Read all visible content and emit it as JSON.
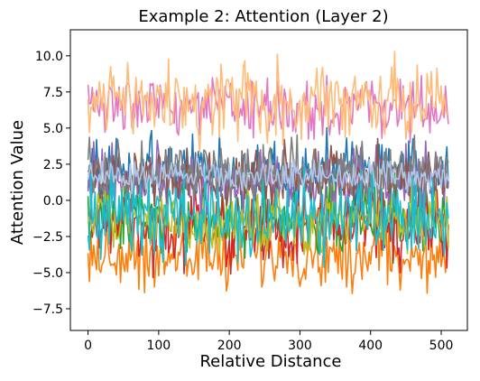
{
  "chart_data": {
    "type": "line",
    "title": "Example 2: Attention (Layer 2)",
    "xlabel": "Relative Distance",
    "ylabel": "Attention Value",
    "xlim": [
      -25,
      537
    ],
    "ylim": [
      -9.0,
      11.8
    ],
    "x_ticks": [
      0,
      100,
      200,
      300,
      400,
      500
    ],
    "x_tick_labels": [
      "0",
      "100",
      "200",
      "300",
      "400",
      "500"
    ],
    "y_ticks": [
      -7.5,
      -5.0,
      -2.5,
      0.0,
      2.5,
      5.0,
      7.5,
      10.0
    ],
    "y_tick_labels": [
      "−7.5",
      "−5.0",
      "−2.5",
      "0.0",
      "2.5",
      "5.0",
      "7.5",
      "10.0"
    ],
    "grid": false,
    "legend": "none",
    "x_range": [
      0,
      511
    ],
    "series": [
      {
        "color": "#1f77b4",
        "mean": 2.0,
        "noise": 1.2
      },
      {
        "color": "#ff7f0e",
        "mean": -3.8,
        "noise": 1.1
      },
      {
        "color": "#2ca02c",
        "mean": -1.2,
        "noise": 1.2
      },
      {
        "color": "#d62728",
        "mean": -1.8,
        "noise": 1.3
      },
      {
        "color": "#9467bd",
        "mean": 1.2,
        "noise": 1.1
      },
      {
        "color": "#8c564b",
        "mean": 1.5,
        "noise": 1.0
      },
      {
        "color": "#e377c2",
        "mean": 6.3,
        "noise": 1.0
      },
      {
        "color": "#7f7f7f",
        "mean": 2.0,
        "noise": 1.0
      },
      {
        "color": "#bcbd22",
        "mean": -1.5,
        "noise": 1.0
      },
      {
        "color": "#17becf",
        "mean": -1.0,
        "noise": 1.5
      },
      {
        "color": "#ffbb78",
        "mean": 6.8,
        "noise": 1.3
      },
      {
        "color": "#aec7e8",
        "mean": 1.8,
        "noise": 0.5
      }
    ]
  }
}
